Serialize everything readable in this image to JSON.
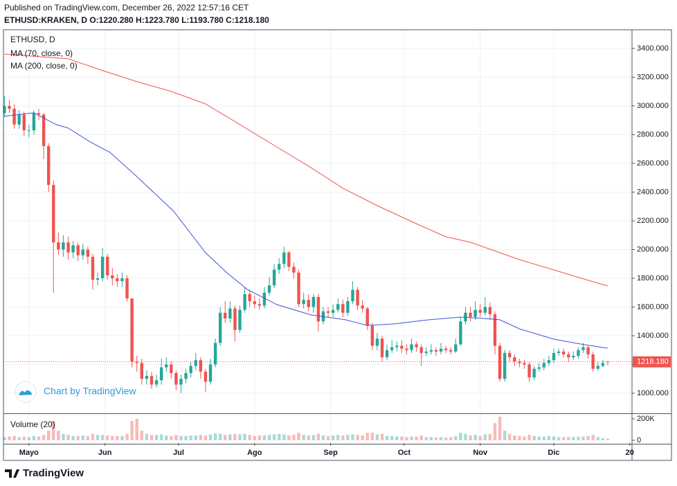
{
  "chart_data": {
    "type": "candlestick",
    "published": "Published on TradingView.com, December 26, 2022 12:57:16 CET",
    "header": "ETHUSD:KRAKEN, D  O:1220.280 H:1223.780 L:1193.780 C:1218.180",
    "title": "ETHUSD, D",
    "x": [
      -10,
      -8,
      -6,
      -4,
      -2,
      0,
      2,
      4,
      6,
      8,
      10,
      12,
      14,
      16,
      18,
      20,
      22,
      24,
      26,
      28,
      30,
      32,
      34,
      36,
      38,
      40,
      42,
      44,
      46,
      48,
      50,
      52,
      54,
      56,
      58,
      60,
      62,
      64,
      66,
      68,
      70,
      72,
      74,
      76,
      78,
      80,
      82,
      84,
      86,
      88,
      90,
      92,
      94,
      96,
      98,
      100,
      102,
      104,
      106,
      108,
      110,
      112,
      114,
      116,
      118,
      120,
      122,
      124,
      126,
      128,
      130,
      132,
      134,
      136,
      138,
      140,
      142,
      144,
      146,
      148,
      150,
      152,
      154,
      156,
      158,
      160,
      162,
      164,
      166,
      168,
      170,
      172,
      174,
      176,
      178,
      180,
      182,
      184,
      186,
      188,
      190,
      192,
      194,
      196,
      198,
      200,
      202,
      204,
      206,
      208,
      210,
      212,
      214,
      216,
      218,
      220,
      222,
      224,
      226,
      228,
      230,
      232,
      234,
      236
    ],
    "open": [
      2950,
      3000,
      2980,
      2870,
      2940,
      2830,
      2830,
      2950,
      2940,
      2720,
      2450,
      2050,
      2000,
      2050,
      1980,
      2030,
      1960,
      2000,
      1950,
      1790,
      1800,
      1950,
      1820,
      1800,
      1780,
      1800,
      1660,
      1220,
      1210,
      1100,
      1120,
      1060,
      1090,
      1180,
      1200,
      1140,
      1060,
      1100,
      1140,
      1190,
      1230,
      1150,
      1080,
      1200,
      1350,
      1560,
      1520,
      1590,
      1440,
      1580,
      1690,
      1640,
      1620,
      1610,
      1700,
      1750,
      1860,
      1900,
      1980,
      1880,
      1840,
      1620,
      1650,
      1600,
      1670,
      1500,
      1570,
      1560,
      1580,
      1620,
      1560,
      1640,
      1720,
      1610,
      1590,
      1470,
      1330,
      1380,
      1250,
      1300,
      1320,
      1330,
      1310,
      1300,
      1340,
      1320,
      1280,
      1290,
      1300,
      1290,
      1310,
      1300,
      1290,
      1340,
      1500,
      1560,
      1530,
      1580,
      1560,
      1600,
      1550,
      1330,
      1100,
      1280,
      1250,
      1220,
      1210,
      1200,
      1110,
      1170,
      1180,
      1210,
      1230,
      1280,
      1290,
      1270,
      1250,
      1260,
      1300,
      1320,
      1270,
      1170,
      1190,
      1220.28
    ],
    "high": [
      3070,
      3040,
      3010,
      2970,
      2960,
      2870,
      2970,
      2980,
      2950,
      2740,
      2480,
      2120,
      2100,
      2090,
      2060,
      2050,
      2040,
      2020,
      1970,
      1840,
      2010,
      1970,
      1870,
      1830,
      1840,
      1820,
      1660,
      1260,
      1240,
      1160,
      1150,
      1130,
      1240,
      1250,
      1220,
      1160,
      1130,
      1170,
      1220,
      1280,
      1250,
      1170,
      1240,
      1380,
      1600,
      1640,
      1640,
      1610,
      1610,
      1740,
      1720,
      1680,
      1660,
      1740,
      1810,
      1900,
      1940,
      2020,
      1990,
      1910,
      1860,
      1700,
      1690,
      1690,
      1690,
      1600,
      1600,
      1620,
      1660,
      1650,
      1670,
      1780,
      1740,
      1650,
      1600,
      1490,
      1420,
      1400,
      1340,
      1370,
      1360,
      1370,
      1340,
      1380,
      1360,
      1340,
      1320,
      1340,
      1320,
      1350,
      1330,
      1320,
      1380,
      1530,
      1600,
      1600,
      1640,
      1620,
      1670,
      1630,
      1570,
      1350,
      1300,
      1300,
      1270,
      1240,
      1230,
      1220,
      1190,
      1210,
      1240,
      1260,
      1310,
      1310,
      1310,
      1290,
      1290,
      1320,
      1350,
      1330,
      1290,
      1220,
      1230,
      1223.78
    ],
    "low": [
      2920,
      2950,
      2840,
      2840,
      2790,
      2780,
      2800,
      2900,
      2630,
      2400,
      1700,
      1960,
      1950,
      1930,
      1940,
      1920,
      1930,
      1900,
      1720,
      1750,
      1780,
      1790,
      1750,
      1740,
      1740,
      1640,
      1180,
      1150,
      1060,
      1060,
      1030,
      1040,
      1060,
      1150,
      1100,
      1020,
      1000,
      1070,
      1110,
      1160,
      1100,
      1010,
      1060,
      1180,
      1330,
      1490,
      1490,
      1360,
      1420,
      1560,
      1600,
      1590,
      1580,
      1590,
      1680,
      1730,
      1830,
      1870,
      1850,
      1800,
      1600,
      1590,
      1570,
      1560,
      1430,
      1480,
      1530,
      1530,
      1560,
      1530,
      1540,
      1620,
      1580,
      1560,
      1440,
      1300,
      1300,
      1220,
      1230,
      1280,
      1290,
      1280,
      1270,
      1280,
      1290,
      1190,
      1260,
      1270,
      1260,
      1270,
      1280,
      1270,
      1280,
      1330,
      1480,
      1500,
      1510,
      1530,
      1540,
      1510,
      1270,
      1080,
      1080,
      1220,
      1190,
      1180,
      1170,
      1080,
      1090,
      1150,
      1160,
      1190,
      1210,
      1260,
      1250,
      1220,
      1230,
      1240,
      1280,
      1240,
      1150,
      1160,
      1180,
      1193.78
    ],
    "close": [
      3000,
      2980,
      2870,
      2940,
      2830,
      2830,
      2950,
      2940,
      2720,
      2450,
      2050,
      2000,
      2050,
      1980,
      2030,
      1960,
      2000,
      1950,
      1790,
      1800,
      1950,
      1820,
      1800,
      1780,
      1800,
      1660,
      1220,
      1210,
      1100,
      1120,
      1060,
      1090,
      1180,
      1200,
      1140,
      1060,
      1100,
      1140,
      1190,
      1230,
      1150,
      1080,
      1200,
      1350,
      1560,
      1520,
      1590,
      1440,
      1580,
      1690,
      1640,
      1620,
      1610,
      1700,
      1750,
      1860,
      1900,
      1980,
      1880,
      1840,
      1620,
      1650,
      1600,
      1670,
      1500,
      1570,
      1560,
      1580,
      1620,
      1560,
      1640,
      1720,
      1610,
      1590,
      1470,
      1330,
      1380,
      1250,
      1300,
      1320,
      1330,
      1310,
      1300,
      1340,
      1320,
      1280,
      1290,
      1300,
      1290,
      1310,
      1300,
      1290,
      1340,
      1500,
      1560,
      1530,
      1580,
      1560,
      1600,
      1550,
      1330,
      1100,
      1280,
      1250,
      1220,
      1210,
      1200,
      1110,
      1170,
      1180,
      1210,
      1230,
      1280,
      1290,
      1270,
      1250,
      1260,
      1300,
      1320,
      1270,
      1170,
      1190,
      1210,
      1218.18
    ],
    "up_color": "#26a69a",
    "down_color": "#ef5350",
    "xlim": [
      -10.4,
      245.9
    ],
    "xticks": [
      {
        "value": 0,
        "label": "Mayo"
      },
      {
        "value": 31,
        "label": "Jun"
      },
      {
        "value": 61,
        "label": "Jul"
      },
      {
        "value": 92,
        "label": "Ago"
      },
      {
        "value": 123,
        "label": "Sep"
      },
      {
        "value": 153,
        "label": "Oct"
      },
      {
        "value": 184,
        "label": "Nov"
      },
      {
        "value": 214,
        "label": "Dic"
      },
      {
        "value": 245,
        "label": "20"
      }
    ],
    "ylim": [
      860,
      3530
    ],
    "yticks": [
      {
        "value": 1000,
        "label": "1000.000"
      },
      {
        "value": 1200,
        "label": "1200.000"
      },
      {
        "value": 1400,
        "label": "1400.000"
      },
      {
        "value": 1600,
        "label": "1600.000"
      },
      {
        "value": 1800,
        "label": "1800.000"
      },
      {
        "value": 2000,
        "label": "2000.000"
      },
      {
        "value": 2200,
        "label": "2200.000"
      },
      {
        "value": 2400,
        "label": "2400.000"
      },
      {
        "value": 2600,
        "label": "2600.000"
      },
      {
        "value": 2800,
        "label": "2800.000"
      },
      {
        "value": 3000,
        "label": "3000.000"
      },
      {
        "value": 3200,
        "label": "3200.000"
      },
      {
        "value": 3400,
        "label": "3400.000"
      }
    ],
    "grid": true,
    "moving_averages": [
      {
        "name": "MA (70, close, 0)",
        "color": "#3f51d9",
        "x": [
          -10,
          2,
          11,
          16,
          25,
          33,
          44,
          59,
          72,
          81,
          89,
          101,
          115,
          129,
          138,
          149,
          163,
          176,
          186,
          192,
          200,
          214,
          225,
          236
        ],
        "values": [
          2928,
          2952,
          2870,
          2846,
          2749,
          2677,
          2508,
          2267,
          1978,
          1834,
          1723,
          1617,
          1545,
          1511,
          1472,
          1482,
          1511,
          1530,
          1520,
          1511,
          1448,
          1376,
          1342,
          1313
        ]
      },
      {
        "name": "MA (200, close, 0)",
        "color": "#ef5350",
        "x": [
          -10,
          16,
          30,
          44,
          58,
          72,
          86,
          100,
          114,
          128,
          142,
          156,
          170,
          180,
          188,
          200,
          214,
          228,
          236
        ],
        "values": [
          3361,
          3328,
          3246,
          3169,
          3101,
          3014,
          2870,
          2725,
          2581,
          2427,
          2306,
          2195,
          2089,
          2051,
          2002,
          1930,
          1858,
          1786,
          1747
        ]
      }
    ],
    "last_price": {
      "value": 1218.18,
      "label": "1218.180"
    },
    "volume": {
      "name": "Volume (20)",
      "ylim": [
        -26000,
        245000
      ],
      "yticks": [
        0,
        {
          "value": 200000,
          "label": "200K"
        }
      ],
      "values": [
        30000,
        35000,
        40000,
        30000,
        35000,
        30000,
        40000,
        35000,
        50000,
        90000,
        180000,
        90000,
        60000,
        50000,
        40000,
        40000,
        45000,
        40000,
        60000,
        50000,
        50000,
        45000,
        40000,
        40000,
        40000,
        60000,
        180000,
        200000,
        90000,
        60000,
        50000,
        50000,
        55000,
        45000,
        40000,
        50000,
        40000,
        40000,
        45000,
        45000,
        50000,
        45000,
        55000,
        65000,
        60000,
        50000,
        55000,
        60000,
        55000,
        60000,
        50000,
        40000,
        45000,
        45000,
        50000,
        55000,
        60000,
        55000,
        45000,
        50000,
        70000,
        50000,
        45000,
        50000,
        60000,
        45000,
        40000,
        45000,
        50000,
        45000,
        50000,
        55000,
        50000,
        45000,
        70000,
        70000,
        55000,
        60000,
        40000,
        40000,
        35000,
        35000,
        30000,
        35000,
        35000,
        45000,
        30000,
        30000,
        25000,
        30000,
        25000,
        30000,
        40000,
        70000,
        60000,
        45000,
        50000,
        40000,
        55000,
        60000,
        160000,
        220000,
        90000,
        60000,
        45000,
        40000,
        35000,
        50000,
        40000,
        35000,
        35000,
        40000,
        35000,
        30000,
        30000,
        30000,
        30000,
        35000,
        35000,
        40000,
        50000,
        30000,
        20000,
        15000
      ]
    },
    "watermark": "Chart by TradingView",
    "brand": "TradingView"
  }
}
